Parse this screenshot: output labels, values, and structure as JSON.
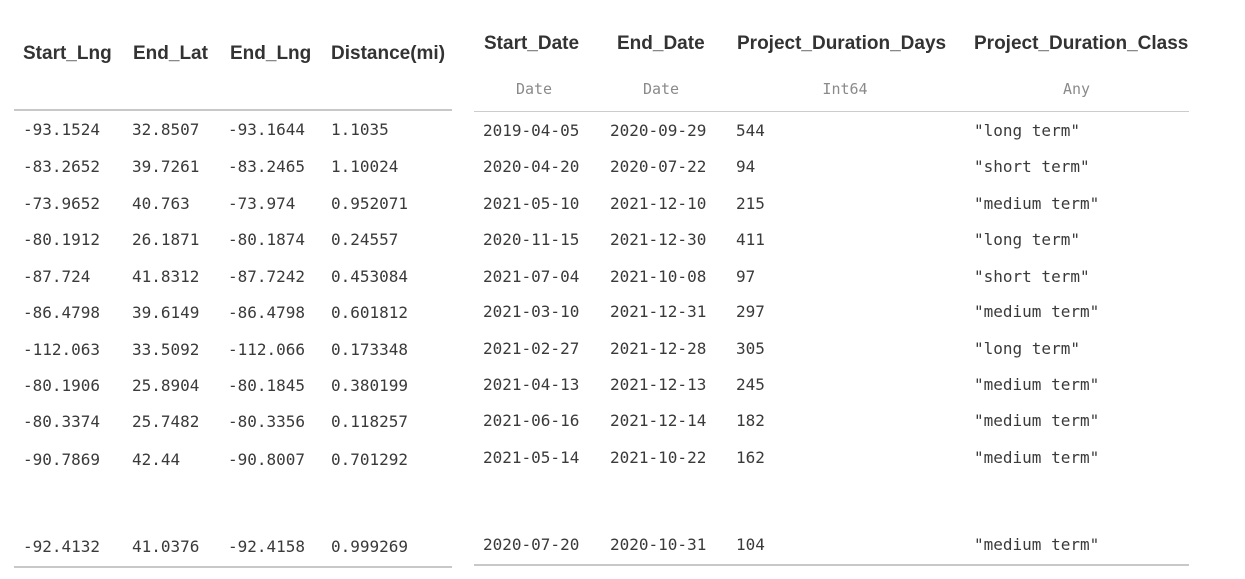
{
  "left_table": {
    "columns": [
      "Start_Lng",
      "End_Lat",
      "End_Lng",
      "Distance(mi)"
    ],
    "rows": [
      [
        "-93.1524",
        "32.8507",
        "-93.1644",
        "1.1035"
      ],
      [
        "-83.2652",
        "39.7261",
        "-83.2465",
        "1.10024"
      ],
      [
        "-73.9652",
        "40.763",
        "-73.974",
        "0.952071"
      ],
      [
        "-80.1912",
        "26.1871",
        "-80.1874",
        "0.24557"
      ],
      [
        "-87.724",
        "41.8312",
        "-87.7242",
        "0.453084"
      ],
      [
        "-86.4798",
        "39.6149",
        "-86.4798",
        "0.601812"
      ],
      [
        "-112.063",
        "33.5092",
        "-112.066",
        "0.173348"
      ],
      [
        "-80.1906",
        "25.8904",
        "-80.1845",
        "0.380199"
      ],
      [
        "-80.3374",
        "25.7482",
        "-80.3356",
        "0.118257"
      ],
      [
        "-90.7869",
        "42.44",
        "-90.8007",
        "0.701292"
      ],
      [
        "-92.4132",
        "41.0376",
        "-92.4158",
        "0.999269"
      ]
    ]
  },
  "right_table": {
    "columns": [
      "Start_Date",
      "End_Date",
      "Project_Duration_Days",
      "Project_Duration_Class"
    ],
    "types": [
      "Date",
      "Date",
      "Int64",
      "Any"
    ],
    "rows": [
      [
        "2019-04-05",
        "2020-09-29",
        "544",
        "\"long term\""
      ],
      [
        "2020-04-20",
        "2020-07-22",
        "94",
        "\"short term\""
      ],
      [
        "2021-05-10",
        "2021-12-10",
        "215",
        "\"medium term\""
      ],
      [
        "2020-11-15",
        "2021-12-30",
        "411",
        "\"long term\""
      ],
      [
        "2021-07-04",
        "2021-10-08",
        "97",
        "\"short term\""
      ],
      [
        "2021-03-10",
        "2021-12-31",
        "297",
        "\"medium term\""
      ],
      [
        "2021-02-27",
        "2021-12-28",
        "305",
        "\"long term\""
      ],
      [
        "2021-04-13",
        "2021-12-13",
        "245",
        "\"medium term\""
      ],
      [
        "2021-06-16",
        "2021-12-14",
        "182",
        "\"medium term\""
      ],
      [
        "2021-05-14",
        "2021-10-22",
        "162",
        "\"medium term\""
      ],
      [
        "2020-07-20",
        "2020-10-31",
        "104",
        "\"medium term\""
      ]
    ]
  }
}
